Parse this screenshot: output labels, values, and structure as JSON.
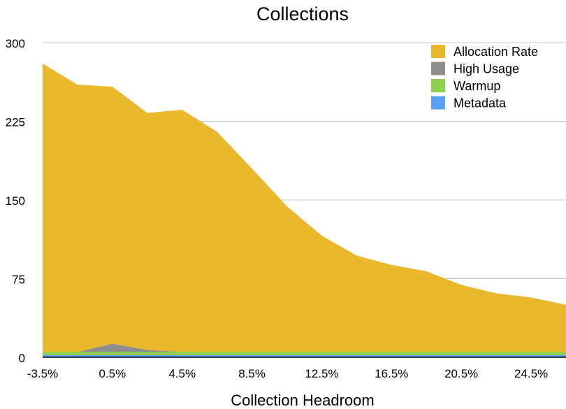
{
  "chart_data": {
    "type": "area",
    "stacked": true,
    "title": "Collections",
    "xlabel": "Collection Headroom",
    "ylabel": "",
    "ylim": [
      0,
      300
    ],
    "yticks": [
      "0",
      "75",
      "150",
      "225",
      "300"
    ],
    "grid": true,
    "legend_position": "top-right",
    "x": [
      "-3.5%",
      "-1.5%",
      "0.5%",
      "2.5%",
      "4.5%",
      "6.5%",
      "8.5%",
      "10.5%",
      "12.5%",
      "14.5%",
      "16.5%",
      "18.5%",
      "20.5%",
      "22.5%",
      "24.5%",
      "26.5%"
    ],
    "xtick_labels": [
      "-3.5%",
      "0.5%",
      "4.5%",
      "8.5%",
      "12.5%",
      "16.5%",
      "20.5%",
      "24.5%"
    ],
    "series": [
      {
        "name": "Metadata",
        "color": "#5aa0f5",
        "values": [
          2,
          2,
          2,
          2,
          2,
          2,
          2,
          2,
          2,
          2,
          2,
          2,
          2,
          2,
          2,
          2
        ]
      },
      {
        "name": "Warmup",
        "color": "#8fd14f",
        "values": [
          3,
          3,
          3,
          3,
          3,
          3,
          3,
          3,
          3,
          3,
          3,
          3,
          3,
          3,
          3,
          3
        ]
      },
      {
        "name": "High Usage",
        "color": "#8e8e8e",
        "values": [
          0,
          0,
          8,
          2,
          0,
          0,
          0,
          0,
          0,
          0,
          0,
          0,
          0,
          0,
          0,
          0
        ]
      },
      {
        "name": "Allocation Rate",
        "color": "#e9b82c",
        "values": [
          275,
          255,
          245,
          226,
          231,
          210,
          175,
          139,
          111,
          92,
          83,
          77,
          64,
          56,
          52,
          45
        ]
      }
    ]
  }
}
